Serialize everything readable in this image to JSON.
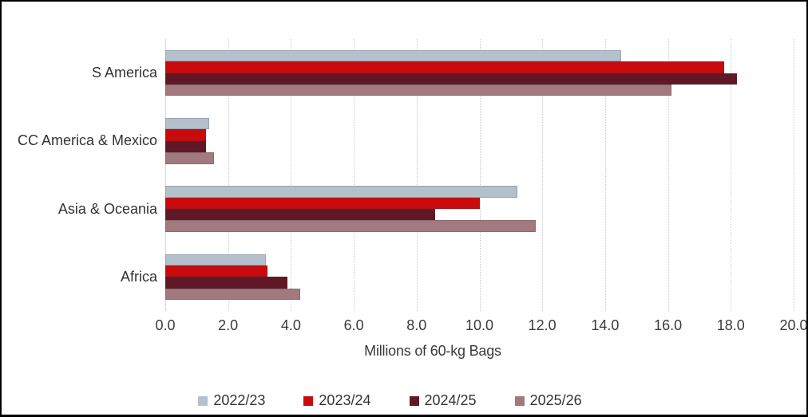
{
  "chart_data": {
    "type": "bar",
    "orientation": "horizontal",
    "categories": [
      "S America",
      "CC America & Mexico",
      "Asia & Oceania",
      "Africa"
    ],
    "series": [
      {
        "name": "2022/23",
        "color": "#b4c1cd",
        "values": [
          14.5,
          1.4,
          11.2,
          3.2
        ]
      },
      {
        "name": "2023/24",
        "color": "#c90b0d",
        "values": [
          17.8,
          1.3,
          10.0,
          3.25
        ]
      },
      {
        "name": "2024/25",
        "color": "#601726",
        "values": [
          18.2,
          1.3,
          8.6,
          3.9
        ]
      },
      {
        "name": "2025/26",
        "color": "#a1797f",
        "values": [
          16.1,
          1.55,
          11.8,
          4.3
        ]
      }
    ],
    "xlabel": "Millions of 60-kg Bags",
    "xlim": [
      0,
      20
    ],
    "xticks": [
      0,
      2,
      4,
      6,
      8,
      10,
      12,
      14,
      16,
      18,
      20
    ],
    "xtick_labels": [
      "0.0",
      "2.0",
      "4.0",
      "6.0",
      "8.0",
      "10.0",
      "12.0",
      "14.0",
      "16.0",
      "18.0",
      "20.0"
    ],
    "grid": true,
    "legend_position": "bottom"
  }
}
